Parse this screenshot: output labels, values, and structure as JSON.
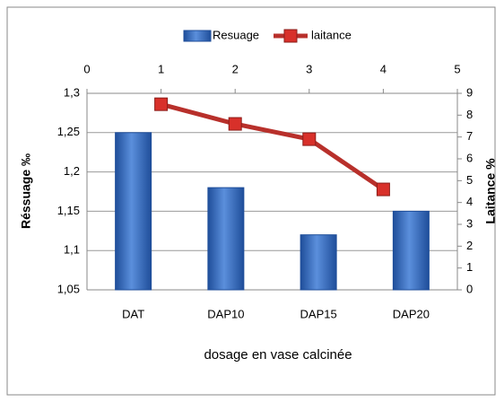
{
  "chart_data": {
    "type": "bar",
    "categories": [
      "DAT",
      "DAP10",
      "DAP15",
      "DAP20"
    ],
    "series": [
      {
        "name": "Resuage",
        "color": "#3a6ec2",
        "values": [
          1.25,
          1.18,
          1.12,
          1.15
        ]
      },
      {
        "name": "laitance",
        "color": "#b8302b",
        "type": "line",
        "axis": "y2",
        "x": [
          1,
          2,
          3,
          4
        ],
        "values": [
          8.5,
          7.6,
          6.9,
          4.6
        ]
      }
    ],
    "xlabel": "dosage en vase calcinée",
    "ylabel": "Réssuage ‰",
    "y2label": "Laitance %",
    "ylim": [
      1.05,
      1.3
    ],
    "yticks": [
      {
        "value": 1.05,
        "label": "1,05"
      },
      {
        "value": 1.1,
        "label": "1,1"
      },
      {
        "value": 1.15,
        "label": "1,15"
      },
      {
        "value": 1.2,
        "label": "1,2"
      },
      {
        "value": 1.25,
        "label": "1,25"
      },
      {
        "value": 1.3,
        "label": "1,3"
      }
    ],
    "y2lim": [
      0,
      9
    ],
    "y2ticks": [
      0,
      1,
      2,
      3,
      4,
      5,
      6,
      7,
      8,
      9
    ],
    "x2lim": [
      0,
      5
    ],
    "x2ticks": [
      0,
      1,
      2,
      3,
      4,
      5
    ],
    "grid": true,
    "legend": "top"
  }
}
